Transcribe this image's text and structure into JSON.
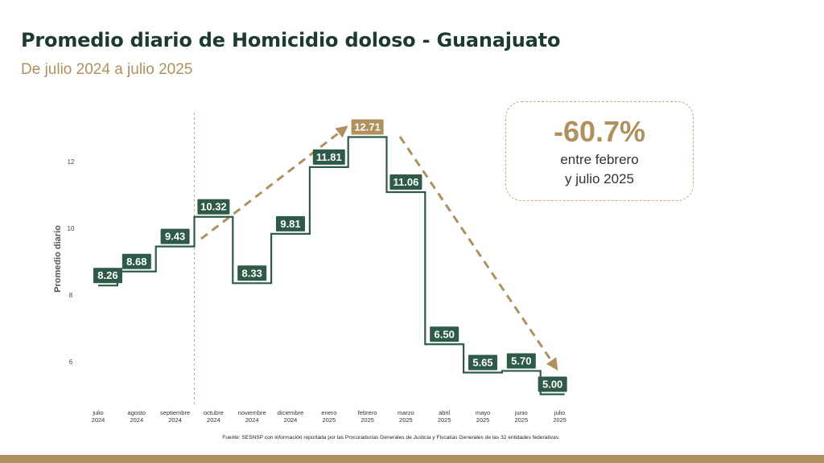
{
  "header": {
    "title": "Promedio diario de Homicidio doloso - Guanajuato",
    "subtitle": "De julio 2024 a julio 2025"
  },
  "callout": {
    "value": "-60.7%",
    "line1": "entre febrero",
    "line2": "y julio 2025"
  },
  "source": "Fuente: SESNSP con información reportada por las Procuradurías Generales de Justicia y Fiscalías Generales de las 32 entidades federativas.",
  "colors": {
    "series": "#2e5b47",
    "label_bg": "#2e5b47",
    "highlight": "#b0905c",
    "accent_text": "#b0905c",
    "title": "#1c3a30"
  },
  "chart_data": {
    "type": "line",
    "step": true,
    "categories": [
      [
        "julio",
        "2024"
      ],
      [
        "agosto",
        "2024"
      ],
      [
        "septiembre",
        "2024"
      ],
      [
        "octubre",
        "2024"
      ],
      [
        "noviembre",
        "2024"
      ],
      [
        "diciembre",
        "2024"
      ],
      [
        "enero",
        "2025"
      ],
      [
        "febrero",
        "2025"
      ],
      [
        "marzo",
        "2025"
      ],
      [
        "abril",
        "2025"
      ],
      [
        "mayo",
        "2025"
      ],
      [
        "junio",
        "2025"
      ],
      [
        "julio",
        "2025"
      ]
    ],
    "values": [
      8.26,
      8.68,
      9.43,
      10.32,
      8.33,
      9.81,
      11.81,
      12.71,
      11.06,
      6.5,
      5.65,
      5.7,
      5.0
    ],
    "value_labels": [
      "8.26",
      "8.68",
      "9.43",
      "10.32",
      "8.33",
      "9.81",
      "11.81",
      "12.71",
      "11.06",
      "6.50",
      "5.65",
      "5.70",
      "5.00"
    ],
    "highlight_index": 7,
    "ylabel": "Promedio diario",
    "yticks": [
      6,
      8,
      10,
      12
    ],
    "ylim": [
      5.0,
      13.0
    ],
    "grid": false,
    "divider_after_index": 2,
    "annotations": [
      {
        "type": "trend-arrow",
        "from_index": 3,
        "to_index": 7
      },
      {
        "type": "trend-arrow",
        "from_index": 7,
        "to_index": 12
      }
    ]
  }
}
